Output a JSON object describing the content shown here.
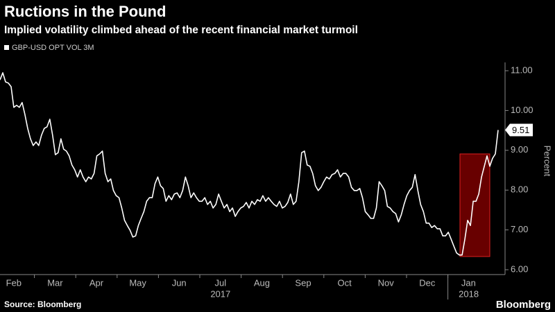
{
  "chart_data": {
    "type": "line",
    "title": "Ructions in the Pound",
    "subtitle": "Implied volatility climbed ahead of the recent financial market turmoil",
    "ylabel": "Percent",
    "source": "Source: Bloomberg",
    "brand": "Bloomberg",
    "months": [
      "Feb",
      "Mar",
      "Apr",
      "May",
      "Jun",
      "Jul",
      "Aug",
      "Sep",
      "Oct",
      "Nov",
      "Dec",
      "Jan"
    ],
    "years": [
      "2017",
      "2018"
    ],
    "ylim": [
      6,
      11
    ],
    "yticks": [
      {
        "value": 6,
        "label": "6.00"
      },
      {
        "value": 7,
        "label": "7.00"
      },
      {
        "value": 8,
        "label": "8.00"
      },
      {
        "value": 9,
        "label": "9.00"
      },
      {
        "value": 10,
        "label": "10.00"
      },
      {
        "value": 11,
        "label": "11.00"
      }
    ],
    "series": [
      {
        "name": "GBP-USD OPT VOL 3M",
        "color": "#ffffff",
        "values": [
          10.77,
          10.95,
          10.72,
          10.69,
          10.6,
          10.08,
          10.13,
          10.08,
          10.2,
          9.9,
          9.55,
          9.29,
          9.12,
          9.21,
          9.12,
          9.38,
          9.55,
          9.59,
          9.78,
          9.38,
          8.89,
          8.94,
          9.29,
          9.03,
          8.98,
          8.86,
          8.63,
          8.51,
          8.33,
          8.51,
          8.33,
          8.21,
          8.33,
          8.28,
          8.42,
          8.86,
          8.91,
          8.98,
          8.42,
          8.21,
          8.28,
          7.99,
          7.86,
          7.81,
          7.55,
          7.24,
          7.11,
          6.99,
          6.82,
          6.85,
          7.11,
          7.29,
          7.46,
          7.72,
          7.81,
          7.81,
          8.16,
          8.33,
          8.11,
          8.04,
          7.72,
          7.86,
          7.76,
          7.9,
          7.93,
          7.81,
          7.99,
          8.33,
          8.11,
          7.81,
          7.93,
          7.81,
          7.72,
          7.72,
          7.81,
          7.64,
          7.72,
          7.55,
          7.64,
          7.9,
          7.72,
          7.55,
          7.64,
          7.46,
          7.55,
          7.34,
          7.46,
          7.55,
          7.59,
          7.69,
          7.55,
          7.72,
          7.64,
          7.76,
          7.72,
          7.86,
          7.72,
          7.81,
          7.72,
          7.64,
          7.59,
          7.72,
          7.55,
          7.59,
          7.69,
          7.9,
          7.64,
          7.72,
          8.21,
          8.94,
          8.98,
          8.63,
          8.6,
          8.42,
          8.11,
          7.99,
          8.07,
          8.21,
          8.33,
          8.28,
          8.39,
          8.42,
          8.51,
          8.33,
          8.42,
          8.42,
          8.33,
          8.07,
          7.99,
          7.99,
          8.04,
          7.81,
          7.46,
          7.38,
          7.29,
          7.29,
          7.55,
          8.21,
          8.11,
          7.99,
          7.59,
          7.55,
          7.46,
          7.41,
          7.2,
          7.38,
          7.64,
          7.86,
          7.99,
          8.07,
          8.39,
          7.99,
          7.64,
          7.46,
          7.17,
          7.17,
          7.06,
          7.11,
          7.03,
          7.03,
          6.85,
          6.85,
          6.94,
          6.77,
          6.59,
          6.42,
          6.37,
          6.37,
          6.77,
          7.24,
          7.11,
          7.72,
          7.72,
          7.9,
          8.33,
          8.6,
          8.86,
          8.6,
          8.8,
          8.91,
          9.51
        ]
      }
    ]
  }
}
